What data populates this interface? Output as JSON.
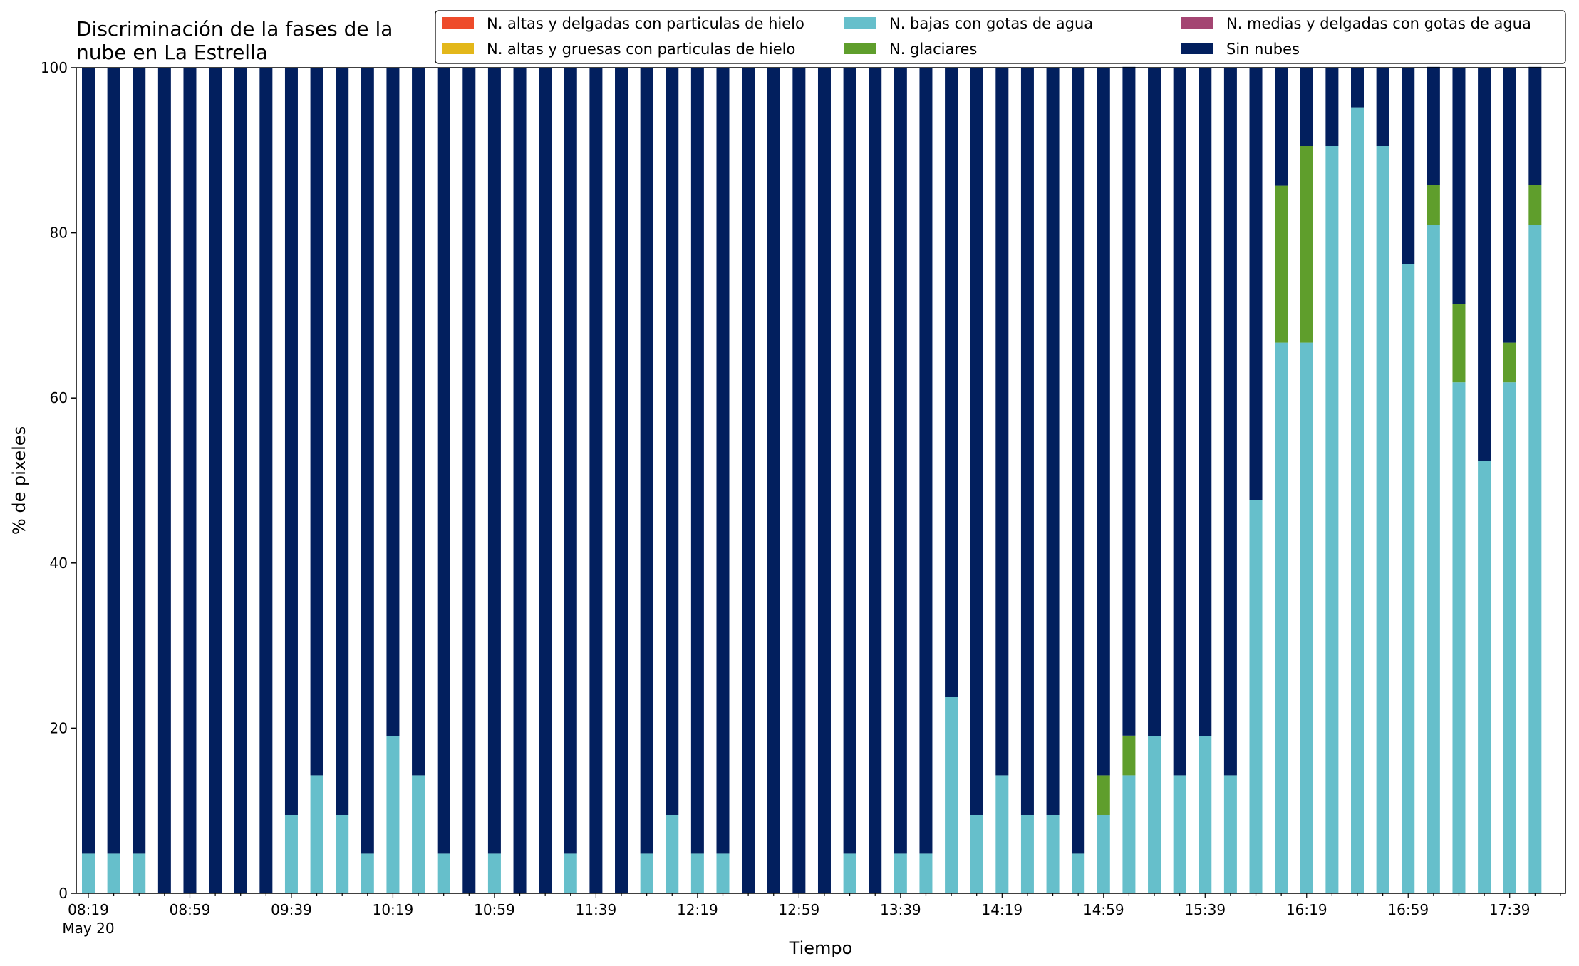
{
  "chart_data": {
    "type": "bar",
    "stacked": true,
    "title_lines": [
      "Discriminación de la fases de la",
      "nube en La Estrella"
    ],
    "xlabel": "Tiempo",
    "ylabel": "% de pixeles",
    "ylim": [
      0,
      100
    ],
    "yticks": [
      "0",
      "20",
      "40",
      "60",
      "80",
      "100"
    ],
    "x_start": "08:19",
    "x_interval_minutes": 10,
    "xtick_labels": [
      "08:19",
      "08:59",
      "09:39",
      "10:19",
      "10:59",
      "11:39",
      "12:19",
      "12:59",
      "13:39",
      "14:19",
      "14:59",
      "15:39",
      "16:19",
      "16:59",
      "17:39"
    ],
    "xtick_sublabel": "May 20",
    "grid": false,
    "legend_position": "top-right",
    "series": [
      {
        "name": "N. altas y delgadas con particulas de hielo",
        "color": "#ee4b2b",
        "values": [
          0,
          0,
          0,
          0,
          0,
          0,
          0,
          0,
          0,
          0,
          0,
          0,
          0,
          0,
          0,
          0,
          0,
          0,
          0,
          0,
          0,
          0,
          0,
          0,
          0,
          0,
          0,
          0,
          0,
          0,
          0,
          0,
          0,
          0,
          0,
          0,
          0,
          0,
          0,
          0,
          0,
          0,
          0,
          0,
          0,
          0,
          0,
          0,
          0,
          0,
          0,
          0,
          0,
          0,
          0,
          0,
          0,
          0
        ]
      },
      {
        "name": "N. altas y gruesas con particulas de hielo",
        "color": "#e3b71a",
        "values": [
          0,
          0,
          0,
          0,
          0,
          0,
          0,
          0,
          0,
          0,
          0,
          0,
          0,
          0,
          0,
          0,
          0,
          0,
          0,
          0,
          0,
          0,
          0,
          0,
          0,
          0,
          0,
          0,
          0,
          0,
          0,
          0,
          0,
          0,
          0,
          0,
          0,
          0,
          0,
          0,
          0,
          0,
          0,
          0,
          0,
          0,
          0,
          0,
          0,
          0,
          0,
          0,
          0,
          0,
          0,
          0,
          0,
          0
        ]
      },
      {
        "name": "N. bajas con gotas de agua",
        "color": "#66bfcb",
        "values": [
          4.8,
          4.8,
          4.8,
          0,
          0,
          0,
          0,
          0,
          9.5,
          14.3,
          9.5,
          4.8,
          19,
          14.3,
          4.8,
          0,
          4.8,
          0,
          0,
          4.8,
          0,
          0,
          4.8,
          9.5,
          4.8,
          4.8,
          0,
          0,
          0,
          0,
          4.8,
          0,
          4.8,
          4.8,
          23.8,
          9.5,
          14.3,
          9.5,
          9.5,
          4.8,
          9.5,
          14.3,
          19,
          14.3,
          19,
          14.3,
          47.6,
          66.7,
          66.7,
          90.5,
          95.2,
          90.5,
          76.2,
          81,
          61.9,
          52.4,
          61.9,
          81
        ]
      },
      {
        "name": "N. glaciares",
        "color": "#5f9e2c",
        "values": [
          0,
          0,
          0,
          0,
          0,
          0,
          0,
          0,
          0,
          0,
          0,
          0,
          0,
          0,
          0,
          0,
          0,
          0,
          0,
          0,
          0,
          0,
          0,
          0,
          0,
          0,
          0,
          0,
          0,
          0,
          0,
          0,
          0,
          0,
          0,
          0,
          0,
          0,
          0,
          0,
          4.8,
          4.8,
          0,
          0,
          0,
          0,
          0,
          19,
          23.8,
          0,
          0,
          0,
          0,
          4.8,
          9.5,
          0,
          4.8,
          4.8
        ]
      },
      {
        "name": "N. medias y delgadas con gotas de agua",
        "color": "#a44572",
        "values": [
          0,
          0,
          0,
          0,
          0,
          0,
          0,
          0,
          0,
          0,
          0,
          0,
          0,
          0,
          0,
          0,
          0,
          0,
          0,
          0,
          0,
          0,
          0,
          0,
          0,
          0,
          0,
          0,
          0,
          0,
          0,
          0,
          0,
          0,
          0,
          0,
          0,
          0,
          0,
          0,
          0,
          0,
          0,
          0,
          0,
          0,
          0,
          0,
          0,
          0,
          0,
          0,
          0,
          0,
          0,
          0,
          0,
          0
        ]
      },
      {
        "name": "Sin nubes",
        "color": "#021f5e",
        "values": [
          95.2,
          95.2,
          95.2,
          100,
          100,
          100,
          100,
          100,
          90.5,
          85.7,
          90.5,
          95.2,
          81,
          85.7,
          95.2,
          100,
          95.2,
          100,
          100,
          95.2,
          100,
          100,
          95.2,
          90.5,
          95.2,
          95.2,
          100,
          100,
          100,
          100,
          95.2,
          100,
          95.2,
          95.2,
          76.2,
          90.5,
          85.7,
          90.5,
          90.5,
          95.2,
          85.7,
          81,
          81,
          85.7,
          81,
          85.7,
          52.4,
          14.3,
          9.5,
          9.5,
          4.8,
          9.5,
          23.8,
          14.3,
          28.6,
          47.6,
          33.3,
          14.3
        ]
      }
    ]
  }
}
